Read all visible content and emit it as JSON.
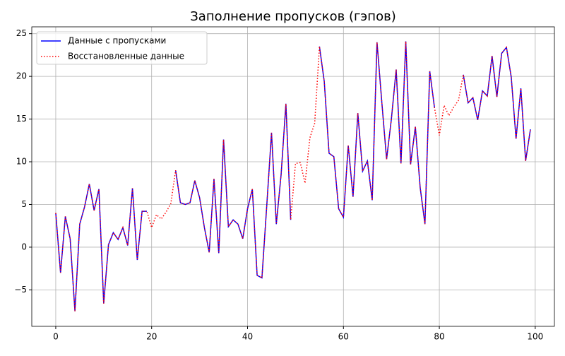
{
  "chart_data": {
    "type": "line",
    "title": "Заполнение пропусков (гэпов)",
    "x": [
      0,
      1,
      2,
      3,
      4,
      5,
      6,
      7,
      8,
      9,
      10,
      11,
      12,
      13,
      14,
      15,
      16,
      17,
      18,
      19,
      20,
      21,
      22,
      23,
      24,
      25,
      26,
      27,
      28,
      29,
      30,
      31,
      32,
      33,
      34,
      35,
      36,
      37,
      38,
      39,
      40,
      41,
      42,
      43,
      44,
      45,
      46,
      47,
      48,
      49,
      50,
      51,
      52,
      53,
      54,
      55,
      56,
      57,
      58,
      59,
      60,
      61,
      62,
      63,
      64,
      65,
      66,
      67,
      68,
      69,
      70,
      71,
      72,
      73,
      74,
      75,
      76,
      77,
      78,
      79,
      80,
      81,
      82,
      83,
      84,
      85,
      86,
      87,
      88,
      89,
      90,
      91,
      92,
      93,
      94,
      95,
      96,
      97,
      98,
      99
    ],
    "series": [
      {
        "name": "Данные с пропусками",
        "color": "#0000ff",
        "style": "solid",
        "values": [
          4.0,
          -3.0,
          3.6,
          1.0,
          -7.5,
          2.7,
          4.7,
          7.4,
          4.3,
          6.8,
          -6.6,
          0.3,
          1.7,
          0.9,
          2.3,
          0.2,
          6.9,
          -1.5,
          4.2,
          4.2,
          null,
          null,
          null,
          null,
          null,
          9.0,
          5.2,
          5.0,
          5.2,
          7.8,
          5.8,
          2.3,
          -0.6,
          8.0,
          -0.7,
          12.6,
          2.4,
          3.2,
          2.7,
          1.0,
          4.5,
          6.8,
          -3.3,
          -3.6,
          4.8,
          13.4,
          2.7,
          8.5,
          16.8,
          3.2,
          null,
          null,
          null,
          null,
          null,
          23.5,
          19.4,
          11.0,
          10.6,
          4.5,
          3.5,
          11.9,
          5.9,
          15.7,
          8.9,
          10.1,
          5.5,
          24.0,
          17.0,
          10.3,
          15.0,
          20.8,
          9.8,
          24.1,
          9.7,
          14.1,
          7.0,
          2.7,
          20.6,
          16.3,
          null,
          null,
          null,
          null,
          null,
          20.2,
          16.9,
          17.5,
          14.9,
          18.3,
          17.7,
          22.4,
          17.6,
          22.7,
          23.4,
          19.9,
          12.7,
          18.6,
          10.1,
          13.8
        ]
      },
      {
        "name": "Восстановленные данные",
        "color": "#ff0000",
        "style": "dotted",
        "values": [
          4.0,
          -3.0,
          3.6,
          1.0,
          -7.5,
          2.7,
          4.7,
          7.4,
          4.3,
          6.8,
          -6.6,
          0.3,
          1.7,
          0.9,
          2.3,
          0.2,
          6.9,
          -1.5,
          4.2,
          4.2,
          2.3,
          3.8,
          3.3,
          4.1,
          5.1,
          9.0,
          5.2,
          5.0,
          5.2,
          7.8,
          5.8,
          2.3,
          -0.6,
          8.0,
          -0.7,
          12.6,
          2.4,
          3.2,
          2.7,
          1.0,
          4.5,
          6.8,
          -3.3,
          -3.6,
          4.8,
          13.4,
          2.7,
          8.5,
          16.8,
          3.2,
          9.8,
          9.9,
          7.5,
          12.8,
          14.5,
          23.5,
          19.4,
          11.0,
          10.6,
          4.5,
          3.5,
          11.9,
          5.9,
          15.7,
          8.9,
          10.1,
          5.5,
          24.0,
          17.0,
          10.3,
          15.0,
          20.8,
          9.8,
          24.1,
          9.7,
          14.1,
          7.0,
          2.7,
          20.6,
          16.3,
          13.1,
          16.6,
          15.4,
          16.4,
          17.2,
          20.2,
          16.9,
          17.5,
          14.9,
          18.3,
          17.7,
          22.4,
          17.6,
          22.7,
          23.4,
          19.9,
          12.7,
          18.6,
          10.1,
          13.8
        ]
      }
    ],
    "xlim": [
      -5,
      104
    ],
    "ylim": [
      -9.27,
      25.8
    ],
    "xticks": [
      0,
      20,
      40,
      60,
      80,
      100
    ],
    "yticks": [
      {
        "value": -5,
        "label": "−5"
      },
      0,
      5,
      10,
      15,
      20,
      25
    ],
    "grid": true,
    "legend": "upper left"
  }
}
